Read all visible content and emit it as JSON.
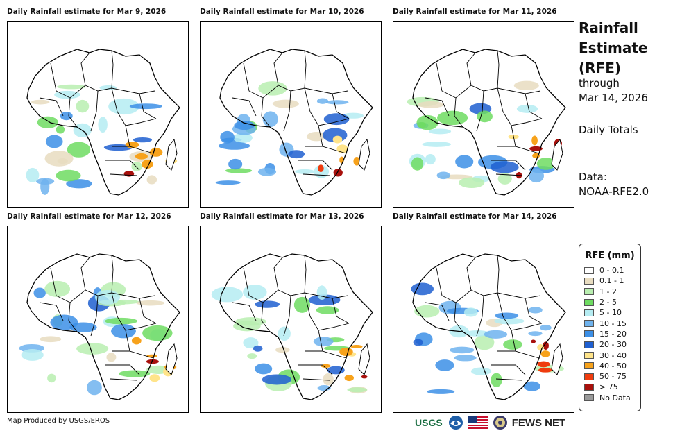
{
  "panels": [
    {
      "title": "Daily Rainfall estimate for Mar 9, 2026"
    },
    {
      "title": "Daily Rainfall estimate for Mar 10, 2026"
    },
    {
      "title": "Daily Rainfall estimate for Mar 11, 2026"
    },
    {
      "title": "Daily Rainfall estimate for Mar 12, 2026"
    },
    {
      "title": "Daily Rainfall estimate for Mar 13, 2026"
    },
    {
      "title": "Daily Rainfall estimate for Mar 14, 2026"
    }
  ],
  "side": {
    "title_lines": [
      "Rainfall",
      "Estimate",
      "(RFE)"
    ],
    "through": "through",
    "date": "Mar 14, 2026",
    "totals": "Daily Totals",
    "data_label": "Data:",
    "data_source": "NOAA-RFE2.0"
  },
  "legend": {
    "title": "RFE (mm)",
    "items": [
      {
        "label": "0 - 0.1",
        "color": "#ffffff"
      },
      {
        "label": "0.1 - 1",
        "color": "#e8dcc0"
      },
      {
        "label": "1 - 2",
        "color": "#b9eeb0"
      },
      {
        "label": "2 - 5",
        "color": "#6fdc62"
      },
      {
        "label": "5 - 10",
        "color": "#b5ecf2"
      },
      {
        "label": "10 - 15",
        "color": "#6fb3ee"
      },
      {
        "label": "15 - 20",
        "color": "#3c8fe6"
      },
      {
        "label": "20 - 30",
        "color": "#1f5fd0"
      },
      {
        "label": "30 - 40",
        "color": "#ffe48a"
      },
      {
        "label": "40 - 50",
        "color": "#f7a21b"
      },
      {
        "label": "50 - 75",
        "color": "#ef3c0e"
      },
      {
        "label": "> 75",
        "color": "#a8100c"
      },
      {
        "label": "No Data",
        "color": "#9a9a9a"
      }
    ]
  },
  "credit": "Map Produced by USGS/EROS",
  "logos": {
    "usgs": "USGS",
    "fewsnet": "FEWS NET"
  }
}
